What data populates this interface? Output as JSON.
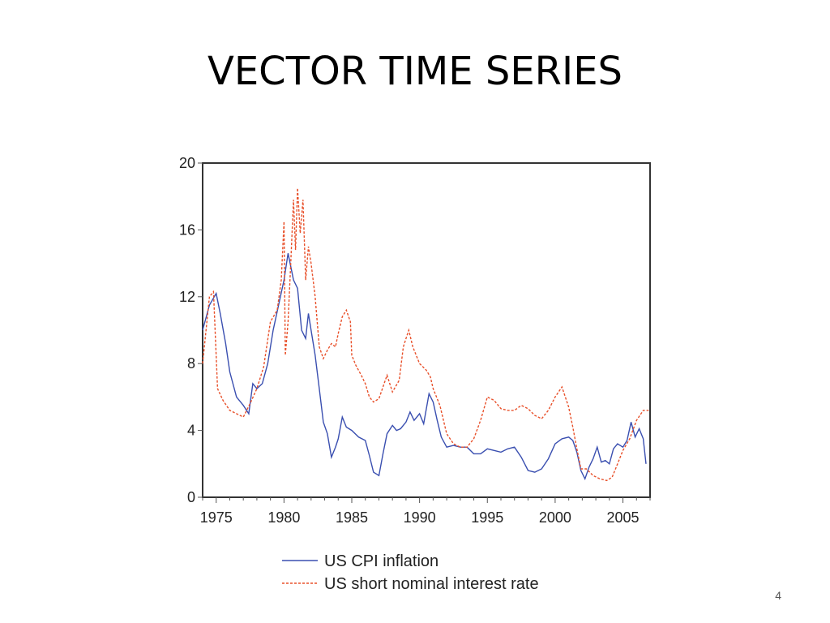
{
  "slide": {
    "title": "VECTOR TIME SERIES",
    "page_number": "4"
  },
  "colors": {
    "cpi": "#3a4fb0",
    "rate": "#e8502a",
    "axis": "#555555",
    "frame": "#333333"
  },
  "chart_data": {
    "type": "line",
    "xlim": [
      1974,
      2007
    ],
    "ylim": [
      0,
      20
    ],
    "x_ticks": [
      1975,
      1980,
      1985,
      1990,
      1995,
      2000,
      2005
    ],
    "y_ticks": [
      0,
      4,
      8,
      12,
      16,
      20
    ],
    "grid": false,
    "legend_position": "bottom",
    "series": [
      {
        "name": "US CPI inflation",
        "style": "solid",
        "points": [
          [
            1974.0,
            10.0
          ],
          [
            1974.5,
            11.5
          ],
          [
            1975.0,
            12.2
          ],
          [
            1975.3,
            11.0
          ],
          [
            1975.7,
            9.2
          ],
          [
            1976.0,
            7.5
          ],
          [
            1976.5,
            6.0
          ],
          [
            1977.0,
            5.5
          ],
          [
            1977.4,
            5.0
          ],
          [
            1977.7,
            6.8
          ],
          [
            1978.0,
            6.5
          ],
          [
            1978.4,
            6.8
          ],
          [
            1978.8,
            8.0
          ],
          [
            1979.2,
            10.0
          ],
          [
            1979.6,
            11.5
          ],
          [
            1980.0,
            13.0
          ],
          [
            1980.3,
            14.6
          ],
          [
            1980.7,
            13.0
          ],
          [
            1981.0,
            12.5
          ],
          [
            1981.3,
            10.0
          ],
          [
            1981.6,
            9.5
          ],
          [
            1981.8,
            11.0
          ],
          [
            1982.0,
            10.0
          ],
          [
            1982.3,
            8.5
          ],
          [
            1982.6,
            6.5
          ],
          [
            1982.9,
            4.5
          ],
          [
            1983.2,
            3.8
          ],
          [
            1983.5,
            2.4
          ],
          [
            1983.8,
            3.0
          ],
          [
            1984.0,
            3.5
          ],
          [
            1984.3,
            4.8
          ],
          [
            1984.6,
            4.2
          ],
          [
            1985.0,
            4.0
          ],
          [
            1985.5,
            3.6
          ],
          [
            1986.0,
            3.4
          ],
          [
            1986.3,
            2.5
          ],
          [
            1986.6,
            1.5
          ],
          [
            1987.0,
            1.3
          ],
          [
            1987.3,
            2.6
          ],
          [
            1987.6,
            3.8
          ],
          [
            1988.0,
            4.3
          ],
          [
            1988.3,
            4.0
          ],
          [
            1988.6,
            4.1
          ],
          [
            1989.0,
            4.5
          ],
          [
            1989.3,
            5.1
          ],
          [
            1989.6,
            4.6
          ],
          [
            1990.0,
            5.0
          ],
          [
            1990.3,
            4.4
          ],
          [
            1990.7,
            6.2
          ],
          [
            1991.0,
            5.7
          ],
          [
            1991.3,
            4.6
          ],
          [
            1991.6,
            3.6
          ],
          [
            1992.0,
            3.0
          ],
          [
            1992.5,
            3.1
          ],
          [
            1993.0,
            3.0
          ],
          [
            1993.5,
            3.0
          ],
          [
            1994.0,
            2.6
          ],
          [
            1994.5,
            2.6
          ],
          [
            1995.0,
            2.9
          ],
          [
            1995.5,
            2.8
          ],
          [
            1996.0,
            2.7
          ],
          [
            1996.5,
            2.9
          ],
          [
            1997.0,
            3.0
          ],
          [
            1997.5,
            2.4
          ],
          [
            1998.0,
            1.6
          ],
          [
            1998.5,
            1.5
          ],
          [
            1999.0,
            1.7
          ],
          [
            1999.5,
            2.3
          ],
          [
            2000.0,
            3.2
          ],
          [
            2000.5,
            3.5
          ],
          [
            2001.0,
            3.6
          ],
          [
            2001.3,
            3.4
          ],
          [
            2001.6,
            2.7
          ],
          [
            2001.9,
            1.6
          ],
          [
            2002.2,
            1.1
          ],
          [
            2002.5,
            1.8
          ],
          [
            2002.8,
            2.3
          ],
          [
            2003.1,
            3.0
          ],
          [
            2003.4,
            2.1
          ],
          [
            2003.7,
            2.2
          ],
          [
            2004.0,
            2.0
          ],
          [
            2004.3,
            2.9
          ],
          [
            2004.6,
            3.2
          ],
          [
            2005.0,
            3.0
          ],
          [
            2005.3,
            3.4
          ],
          [
            2005.6,
            4.5
          ],
          [
            2005.9,
            3.6
          ],
          [
            2006.2,
            4.1
          ],
          [
            2006.5,
            3.5
          ],
          [
            2006.7,
            2.0
          ]
        ]
      },
      {
        "name": "US short nominal interest rate",
        "style": "dashed",
        "points": [
          [
            1974.0,
            8.0
          ],
          [
            1974.5,
            12.0
          ],
          [
            1974.8,
            12.3
          ],
          [
            1975.1,
            6.5
          ],
          [
            1975.5,
            5.8
          ],
          [
            1976.0,
            5.2
          ],
          [
            1976.5,
            5.0
          ],
          [
            1977.0,
            4.8
          ],
          [
            1977.5,
            5.6
          ],
          [
            1978.0,
            6.5
          ],
          [
            1978.5,
            7.8
          ],
          [
            1979.0,
            10.5
          ],
          [
            1979.5,
            11.2
          ],
          [
            1979.8,
            13.0
          ],
          [
            1980.0,
            16.5
          ],
          [
            1980.1,
            8.5
          ],
          [
            1980.3,
            10.5
          ],
          [
            1980.5,
            14.0
          ],
          [
            1980.7,
            17.8
          ],
          [
            1980.85,
            14.8
          ],
          [
            1981.0,
            18.5
          ],
          [
            1981.2,
            15.8
          ],
          [
            1981.4,
            17.8
          ],
          [
            1981.6,
            13.0
          ],
          [
            1981.8,
            15.0
          ],
          [
            1982.0,
            14.0
          ],
          [
            1982.3,
            12.0
          ],
          [
            1982.6,
            9.0
          ],
          [
            1982.9,
            8.3
          ],
          [
            1983.2,
            8.8
          ],
          [
            1983.5,
            9.2
          ],
          [
            1983.8,
            9.0
          ],
          [
            1984.0,
            9.8
          ],
          [
            1984.3,
            10.8
          ],
          [
            1984.6,
            11.2
          ],
          [
            1984.9,
            10.5
          ],
          [
            1985.0,
            8.5
          ],
          [
            1985.3,
            7.9
          ],
          [
            1985.7,
            7.3
          ],
          [
            1986.0,
            6.8
          ],
          [
            1986.3,
            6.0
          ],
          [
            1986.6,
            5.7
          ],
          [
            1987.0,
            5.9
          ],
          [
            1987.3,
            6.6
          ],
          [
            1987.6,
            7.3
          ],
          [
            1988.0,
            6.3
          ],
          [
            1988.5,
            7.0
          ],
          [
            1988.8,
            9.0
          ],
          [
            1989.0,
            9.5
          ],
          [
            1989.2,
            10.0
          ],
          [
            1989.5,
            9.0
          ],
          [
            1990.0,
            8.0
          ],
          [
            1990.5,
            7.6
          ],
          [
            1990.8,
            7.2
          ],
          [
            1991.0,
            6.5
          ],
          [
            1991.5,
            5.5
          ],
          [
            1992.0,
            3.8
          ],
          [
            1992.5,
            3.2
          ],
          [
            1993.0,
            3.0
          ],
          [
            1993.5,
            3.0
          ],
          [
            1994.0,
            3.5
          ],
          [
            1994.5,
            4.6
          ],
          [
            1995.0,
            6.0
          ],
          [
            1995.5,
            5.8
          ],
          [
            1996.0,
            5.3
          ],
          [
            1996.5,
            5.2
          ],
          [
            1997.0,
            5.2
          ],
          [
            1997.5,
            5.5
          ],
          [
            1998.0,
            5.3
          ],
          [
            1998.5,
            4.9
          ],
          [
            1999.0,
            4.7
          ],
          [
            1999.5,
            5.2
          ],
          [
            2000.0,
            6.0
          ],
          [
            2000.5,
            6.6
          ],
          [
            2001.0,
            5.4
          ],
          [
            2001.3,
            4.2
          ],
          [
            2001.6,
            2.9
          ],
          [
            2001.9,
            1.7
          ],
          [
            2002.3,
            1.7
          ],
          [
            2002.8,
            1.3
          ],
          [
            2003.3,
            1.1
          ],
          [
            2003.8,
            1.0
          ],
          [
            2004.2,
            1.2
          ],
          [
            2004.6,
            2.0
          ],
          [
            2005.0,
            2.8
          ],
          [
            2005.5,
            3.5
          ],
          [
            2006.0,
            4.6
          ],
          [
            2006.5,
            5.2
          ],
          [
            2006.9,
            5.2
          ]
        ]
      }
    ]
  }
}
